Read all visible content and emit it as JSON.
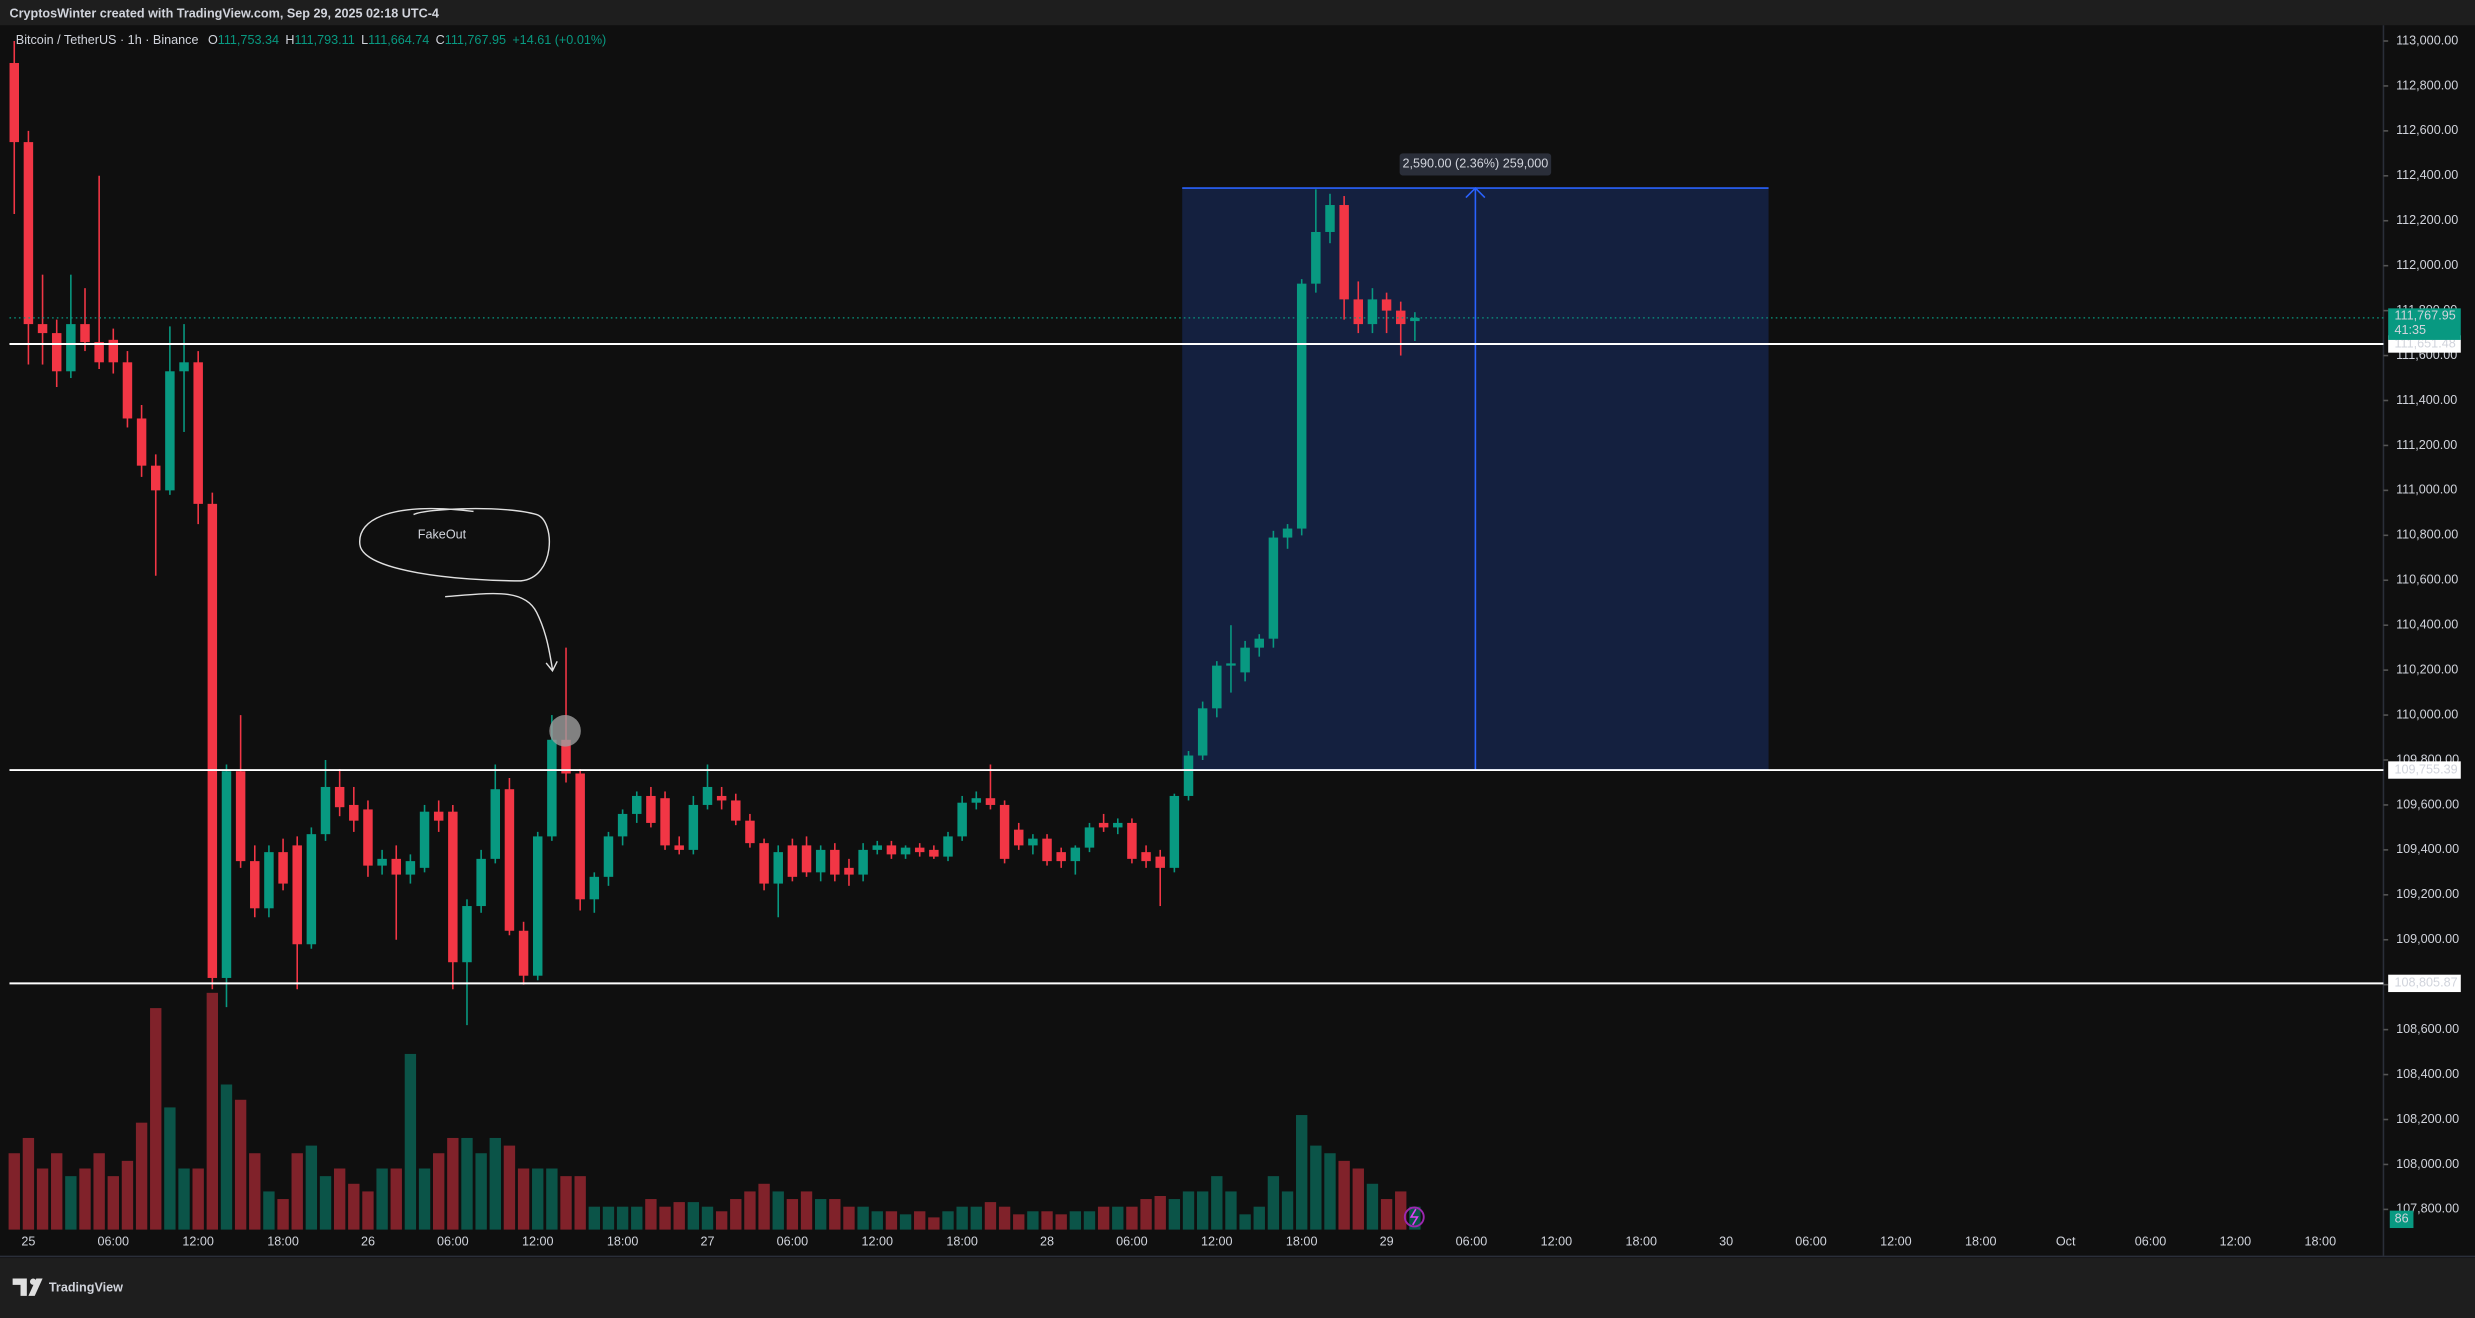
{
  "header": {
    "credit": "CryptosWinter created with TradingView.com, Sep 29, 2025 02:18 UTC-4",
    "symbol": "Bitcoin / TetherUS · 1h · Binance",
    "ohlc": [
      {
        "key": "O",
        "value": "111,753.34"
      },
      {
        "key": "H",
        "value": "111,793.11"
      },
      {
        "key": "L",
        "value": "111,664.74"
      },
      {
        "key": "C",
        "value": "111,767.95"
      }
    ],
    "change": "+14.61 (+0.01%)"
  },
  "chart_data": {
    "type": "candlestick",
    "categories": [
      null,
      "25",
      null,
      null,
      null,
      null,
      null,
      "06:00",
      null,
      null,
      null,
      null,
      null,
      "12:00",
      null,
      null,
      null,
      null,
      null,
      "18:00",
      null,
      null,
      null,
      null,
      null,
      "26",
      null,
      null,
      null,
      null,
      null,
      "06:00",
      null,
      null,
      null,
      null,
      null,
      "12:00",
      null,
      null,
      null,
      null,
      null,
      "18:00",
      null,
      null,
      null,
      null,
      null,
      "27",
      null,
      null,
      null,
      null,
      null,
      "06:00",
      null,
      null,
      null,
      null,
      null,
      "12:00",
      null,
      null,
      null,
      null,
      null,
      "18:00",
      null,
      null,
      null,
      null,
      null,
      "28",
      null,
      null,
      null,
      null,
      null,
      "06:00",
      null,
      null,
      null,
      null,
      null,
      "12:00",
      null,
      null,
      null,
      null,
      null,
      "18:00",
      null,
      null,
      null,
      null,
      null,
      "29",
      null,
      null,
      null,
      null,
      null,
      "06:00",
      null,
      null,
      null,
      null,
      null,
      "12:00",
      null,
      null,
      null,
      null,
      null,
      "18:00",
      null,
      null,
      null,
      null,
      null,
      "30",
      null,
      null,
      null,
      null,
      null,
      "06:00",
      null,
      null,
      null,
      null,
      null,
      "12:00",
      null,
      null,
      null,
      null,
      null,
      "18:00",
      null,
      null,
      null,
      null,
      null,
      "Oct",
      null,
      null,
      null,
      null,
      null,
      "06:00",
      null,
      null,
      null,
      null,
      null,
      "12:00",
      null,
      null,
      null,
      null,
      null,
      "18:00",
      null,
      null,
      null,
      null,
      null
    ],
    "open": [
      112902,
      112550,
      111740,
      111700,
      111530,
      111740,
      111660,
      111670,
      111570,
      111320,
      111110,
      111000,
      111530,
      111570,
      110940,
      108830,
      109750,
      109350,
      109140,
      109390,
      109420,
      108980,
      109470,
      109680,
      109600,
      109580,
      109330,
      109360,
      109290,
      109320,
      109570,
      109570,
      108900,
      109150,
      109360,
      109670,
      109040,
      108840,
      109460,
      109890,
      109740,
      109180,
      109280,
      109460,
      109560,
      109640,
      109630,
      109420,
      109400,
      109600,
      109640,
      109620,
      109530,
      109430,
      109250,
      109420,
      109420,
      109300,
      109400,
      109320,
      109290,
      109400,
      109420,
      109380,
      109410,
      109400,
      109370,
      109460,
      109610,
      109630,
      109600,
      109490,
      109420,
      109450,
      109390,
      109350,
      109410,
      109520,
      109500,
      109520,
      109390,
      109370,
      109320,
      109640,
      109820,
      110030,
      110220,
      110190,
      110300,
      110340,
      110790,
      110830,
      111920,
      112150,
      112270,
      111850,
      111740,
      111850,
      111800,
      111753.34,
      null,
      null,
      null,
      null,
      null,
      null,
      null,
      null,
      null,
      null,
      null,
      null,
      null,
      null,
      null,
      null,
      null,
      null,
      null,
      null,
      null,
      null,
      null,
      null,
      null,
      null,
      null,
      null,
      null,
      null,
      null,
      null,
      null,
      null,
      null,
      null,
      null,
      null,
      null,
      null,
      null,
      null,
      null,
      null,
      null,
      null,
      null,
      null,
      null,
      null,
      null,
      null,
      null,
      null,
      null,
      null,
      null,
      null,
      null,
      null,
      null,
      null,
      null,
      null,
      null,
      null,
      null,
      null,
      null
    ],
    "high": [
      113000,
      112600,
      111960,
      111760,
      111960,
      111900,
      112400,
      111720,
      111620,
      111380,
      111160,
      111730,
      111740,
      111620,
      110990,
      109780,
      110000,
      109420,
      109420,
      109450,
      109460,
      109500,
      109800,
      109760,
      109680,
      109620,
      109400,
      109420,
      109380,
      109600,
      109620,
      109600,
      109180,
      109400,
      109780,
      109720,
      109080,
      109480,
      110000,
      110300,
      109760,
      109300,
      109480,
      109580,
      109660,
      109680,
      109660,
      109460,
      109640,
      109780,
      109680,
      109650,
      109560,
      109450,
      109420,
      109450,
      109460,
      109420,
      109430,
      109360,
      109430,
      109440,
      109440,
      109420,
      109430,
      109420,
      109480,
      109640,
      109660,
      109780,
      109620,
      109520,
      109470,
      109470,
      109410,
      109420,
      109520,
      109560,
      109540,
      109540,
      109420,
      109400,
      109650,
      109840,
      110060,
      110240,
      110400,
      110330,
      110360,
      110820,
      110850,
      111940,
      112340,
      112320,
      112310,
      111930,
      111900,
      111880,
      111840,
      111793.11,
      null,
      null,
      null,
      null,
      null,
      null,
      null,
      null,
      null,
      null,
      null,
      null,
      null,
      null,
      null,
      null,
      null,
      null,
      null,
      null,
      null,
      null,
      null,
      null,
      null,
      null,
      null,
      null,
      null,
      null,
      null,
      null,
      null,
      null,
      null,
      null,
      null,
      null,
      null,
      null,
      null,
      null,
      null,
      null,
      null,
      null,
      null,
      null,
      null,
      null,
      null,
      null,
      null,
      null,
      null,
      null,
      null,
      null,
      null,
      null,
      null,
      null,
      null,
      null,
      null,
      null,
      null,
      null,
      null
    ],
    "low": [
      112230,
      111560,
      111560,
      111460,
      111500,
      111620,
      111540,
      111520,
      111280,
      111060,
      110620,
      110980,
      111260,
      110850,
      108780,
      108700,
      109320,
      109100,
      109100,
      109220,
      108780,
      108960,
      109440,
      109550,
      109480,
      109280,
      109290,
      109000,
      109250,
      109300,
      109480,
      108780,
      108620,
      109120,
      109340,
      109020,
      108800,
      108820,
      109440,
      109700,
      109130,
      109120,
      109240,
      109420,
      109520,
      109500,
      109400,
      109380,
      109380,
      109580,
      109580,
      109510,
      109410,
      109220,
      109100,
      109260,
      109280,
      109260,
      109260,
      109240,
      109260,
      109380,
      109360,
      109360,
      109370,
      109360,
      109350,
      109440,
      109580,
      109580,
      109340,
      109400,
      109380,
      109330,
      109320,
      109290,
      109390,
      109480,
      109470,
      109340,
      109320,
      109150,
      109300,
      109620,
      109800,
      109990,
      110100,
      110150,
      110260,
      110300,
      110740,
      110800,
      111880,
      112100,
      111760,
      111700,
      111700,
      111700,
      111600,
      111664.74,
      null,
      null,
      null,
      null,
      null,
      null,
      null,
      null,
      null,
      null,
      null,
      null,
      null,
      null,
      null,
      null,
      null,
      null,
      null,
      null,
      null,
      null,
      null,
      null,
      null,
      null,
      null,
      null,
      null,
      null,
      null,
      null,
      null,
      null,
      null,
      null,
      null,
      null,
      null,
      null,
      null,
      null,
      null,
      null,
      null,
      null,
      null,
      null,
      null,
      null,
      null,
      null,
      null,
      null,
      null,
      null,
      null,
      null,
      null,
      null,
      null,
      null,
      null,
      null,
      null,
      null,
      null,
      null,
      null
    ],
    "close": [
      112550,
      111740,
      111700,
      111530,
      111740,
      111660,
      111570,
      111570,
      111320,
      111110,
      111000,
      111530,
      111570,
      110940,
      108830,
      109750,
      109350,
      109140,
      109390,
      109250,
      108980,
      109470,
      109680,
      109590,
      109530,
      109330,
      109360,
      109290,
      109350,
      109570,
      109530,
      108900,
      109150,
      109360,
      109670,
      109040,
      108840,
      109460,
      109890,
      109740,
      109180,
      109280,
      109460,
      109560,
      109640,
      109520,
      109420,
      109400,
      109600,
      109680,
      109620,
      109530,
      109430,
      109250,
      109390,
      109280,
      109300,
      109400,
      109290,
      109290,
      109400,
      109420,
      109380,
      109410,
      109390,
      109370,
      109460,
      109610,
      109630,
      109600,
      109360,
      109420,
      109450,
      109350,
      109350,
      109410,
      109500,
      109500,
      109520,
      109360,
      109350,
      109320,
      109640,
      109820,
      110030,
      110220,
      110230,
      110300,
      110340,
      110790,
      110830,
      111920,
      112150,
      112270,
      111850,
      111740,
      111850,
      111800,
      111740,
      111767.95,
      null,
      null,
      null,
      null,
      null,
      null,
      null,
      null,
      null,
      null,
      null,
      null,
      null,
      null,
      null,
      null,
      null,
      null,
      null,
      null,
      null,
      null,
      null,
      null,
      null,
      null,
      null,
      null,
      null,
      null,
      null,
      null,
      null,
      null,
      null,
      null,
      null,
      null,
      null,
      null,
      null,
      null,
      null,
      null,
      null,
      null,
      null,
      null,
      null,
      null,
      null,
      null,
      null,
      null,
      null,
      null,
      null,
      null,
      null,
      null,
      null,
      null,
      null,
      null,
      null,
      null,
      null,
      null,
      null
    ],
    "volume": [
      50,
      60,
      40,
      50,
      35,
      40,
      50,
      35,
      45,
      70,
      145,
      80,
      40,
      40,
      155,
      95,
      85,
      50,
      25,
      20,
      50,
      55,
      35,
      40,
      30,
      25,
      40,
      40,
      115,
      40,
      50,
      60,
      60,
      50,
      60,
      55,
      40,
      40,
      40,
      35,
      35,
      15,
      15,
      15,
      15,
      20,
      15,
      18,
      18,
      15,
      12,
      20,
      25,
      30,
      25,
      20,
      25,
      20,
      20,
      15,
      15,
      12,
      12,
      10,
      12,
      8,
      12,
      15,
      15,
      18,
      15,
      10,
      12,
      12,
      10,
      12,
      12,
      15,
      15,
      15,
      20,
      22,
      20,
      25,
      25,
      35,
      25,
      10,
      15,
      35,
      25,
      75,
      55,
      50,
      45,
      40,
      30,
      20,
      25,
      15,
      null,
      null,
      null,
      null,
      null,
      null,
      null,
      null,
      null,
      null,
      null,
      null,
      null,
      null,
      null,
      null,
      null,
      null,
      null,
      null,
      null,
      null,
      null,
      null,
      null,
      null,
      null,
      null,
      null,
      null,
      null,
      null,
      null,
      null,
      null,
      null,
      null,
      null,
      null,
      null,
      null,
      null,
      null,
      null,
      null,
      null,
      null,
      null,
      null,
      null,
      null,
      null,
      null,
      null,
      null,
      null,
      null,
      null,
      null,
      null,
      null,
      null,
      null,
      null,
      null,
      null,
      null,
      null,
      null
    ],
    "up_color": "#089981",
    "down_color": "#f23645",
    "ylim": [
      107710,
      113056
    ],
    "yticks": [
      {
        "value": 107800,
        "label": "107,800.00"
      },
      {
        "value": 108000,
        "label": "108,000.00"
      },
      {
        "value": 108200,
        "label": "108,200.00"
      },
      {
        "value": 108400,
        "label": "108,400.00"
      },
      {
        "value": 108600,
        "label": "108,600.00"
      },
      {
        "value": 108800,
        "label": "108,800.00"
      },
      {
        "value": 109000,
        "label": "109,000.00"
      },
      {
        "value": 109200,
        "label": "109,200.00"
      },
      {
        "value": 109400,
        "label": "109,400.00"
      },
      {
        "value": 109600,
        "label": "109,600.00"
      },
      {
        "value": 109800,
        "label": "109,800.00"
      },
      {
        "value": 110000,
        "label": "110,000.00"
      },
      {
        "value": 110200,
        "label": "110,200.00"
      },
      {
        "value": 110400,
        "label": "110,400.00"
      },
      {
        "value": 110600,
        "label": "110,600.00"
      },
      {
        "value": 110800,
        "label": "110,800.00"
      },
      {
        "value": 111000,
        "label": "111,000.00"
      },
      {
        "value": 111200,
        "label": "111,200.00"
      },
      {
        "value": 111400,
        "label": "111,400.00"
      },
      {
        "value": 111600,
        "label": "111,600.00"
      },
      {
        "value": 111800,
        "label": "111,800.00"
      },
      {
        "value": 112000,
        "label": "112,000.00"
      },
      {
        "value": 112200,
        "label": "112,200.00"
      },
      {
        "value": 112400,
        "label": "112,400.00"
      },
      {
        "value": 112600,
        "label": "112,600.00"
      },
      {
        "value": 112800,
        "label": "112,800.00"
      },
      {
        "value": 113000,
        "label": "113,000.00"
      }
    ],
    "grid": false,
    "levels": [
      {
        "value": 111651.48,
        "label": "111,651.48"
      },
      {
        "value": 109755.39,
        "label": "109,755.39"
      },
      {
        "value": 108805.87,
        "label": "108,805.87"
      }
    ],
    "last_price_label": "111,767.95",
    "countdown": "41:35",
    "measure": {
      "from": 109755.39,
      "to": 112345.39,
      "label": "2,590.00 (2.36%) 259,000"
    },
    "annotation": "FakeOut",
    "volume_badge": "86"
  },
  "footer": {
    "brand": "TradingView"
  }
}
